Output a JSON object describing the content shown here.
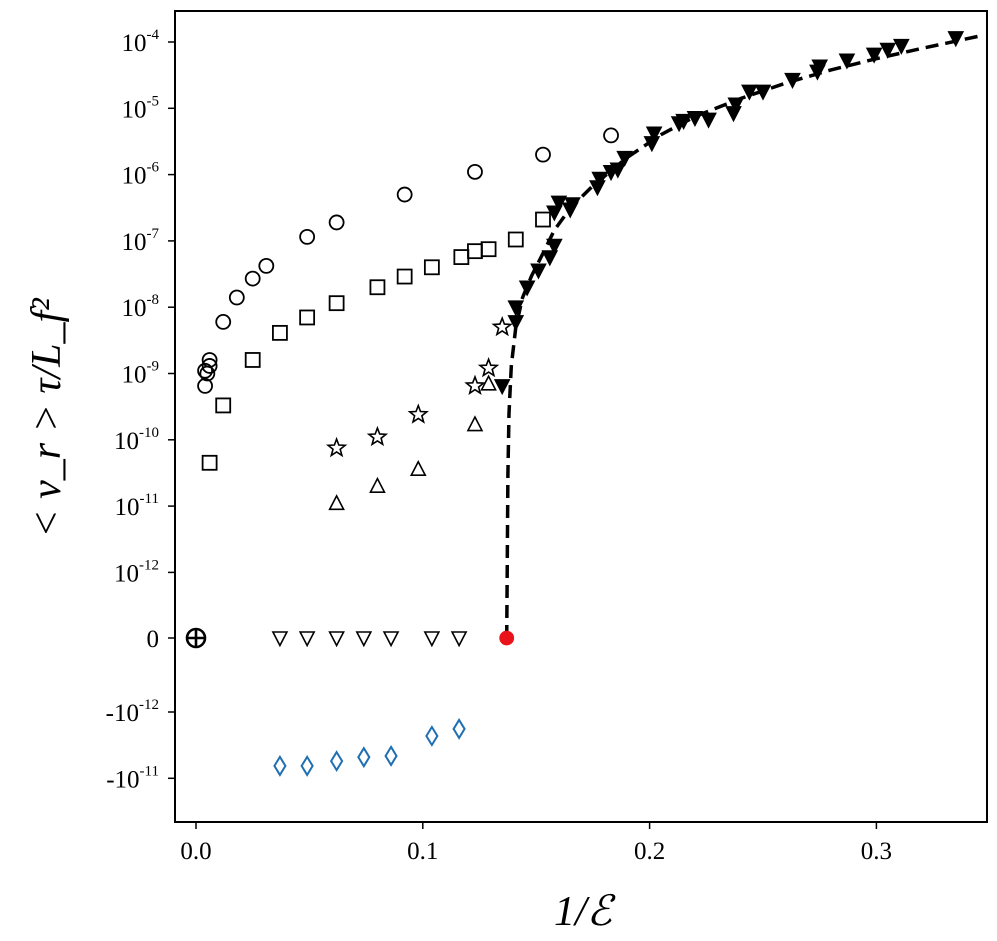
{
  "chart_data": {
    "type": "scatter",
    "title": "",
    "xlabel": "1/ℰ",
    "ylabel": "< ν_r > τ/L_f²",
    "xlim": [
      -0.01,
      0.35
    ],
    "x_ticks": [
      {
        "value": 0.0,
        "label": "0.0"
      },
      {
        "value": 0.1,
        "label": "0.1"
      },
      {
        "value": 0.2,
        "label": "0.2"
      },
      {
        "value": 0.3,
        "label": "0.3"
      }
    ],
    "y_scale": "symlog",
    "y_ticks": [
      {
        "base": "10",
        "exp": "-4"
      },
      {
        "base": "10",
        "exp": "-5"
      },
      {
        "base": "10",
        "exp": "-6"
      },
      {
        "base": "10",
        "exp": "-7"
      },
      {
        "base": "10",
        "exp": "-8"
      },
      {
        "base": "10",
        "exp": "-9"
      },
      {
        "base": "10",
        "exp": "-10"
      },
      {
        "base": "10",
        "exp": "-11"
      },
      {
        "base": "10",
        "exp": "-12"
      },
      {
        "base": "0",
        "exp": ""
      },
      {
        "base": "-10",
        "exp": "-12"
      },
      {
        "base": "-10",
        "exp": "-11"
      }
    ],
    "series": [
      {
        "name": "circles",
        "marker": "circle",
        "filled": false,
        "color": "#000000",
        "points": [
          [
            0.004,
            6.5e-10
          ],
          [
            0.004,
            1.1e-09
          ],
          [
            0.005,
            1e-09
          ],
          [
            0.006,
            1.3e-09
          ],
          [
            0.006,
            1.6e-09
          ],
          [
            0.012,
            6e-09
          ],
          [
            0.018,
            1.4e-08
          ],
          [
            0.025,
            2.7e-08
          ],
          [
            0.031,
            4.2e-08
          ],
          [
            0.049,
            1.15e-07
          ],
          [
            0.062,
            1.9e-07
          ],
          [
            0.092,
            5e-07
          ],
          [
            0.123,
            1.1e-06
          ],
          [
            0.153,
            2e-06
          ],
          [
            0.183,
            3.9e-06
          ]
        ]
      },
      {
        "name": "squares",
        "marker": "square",
        "filled": false,
        "color": "#000000",
        "points": [
          [
            0.006,
            4.5e-11
          ],
          [
            0.012,
            3.3e-10
          ],
          [
            0.025,
            1.6e-09
          ],
          [
            0.037,
            4.1e-09
          ],
          [
            0.049,
            7e-09
          ],
          [
            0.062,
            1.15e-08
          ],
          [
            0.08,
            2e-08
          ],
          [
            0.092,
            2.9e-08
          ],
          [
            0.104,
            4e-08
          ],
          [
            0.117,
            5.7e-08
          ],
          [
            0.123,
            7e-08
          ],
          [
            0.129,
            7.5e-08
          ],
          [
            0.141,
            1.05e-07
          ],
          [
            0.153,
            2.1e-07
          ]
        ]
      },
      {
        "name": "stars",
        "marker": "star",
        "filled": false,
        "color": "#000000",
        "points": [
          [
            0.062,
            7.5e-11
          ],
          [
            0.08,
            1.1e-10
          ],
          [
            0.098,
            2.4e-10
          ],
          [
            0.123,
            6.5e-10
          ],
          [
            0.129,
            1.2e-09
          ],
          [
            0.135,
            5e-09
          ]
        ]
      },
      {
        "name": "triangles-up",
        "marker": "triangle-up",
        "filled": false,
        "color": "#000000",
        "points": [
          [
            0.062,
            1.1e-11
          ],
          [
            0.08,
            2e-11
          ],
          [
            0.098,
            3.6e-11
          ],
          [
            0.123,
            1.7e-10
          ],
          [
            0.129,
            7e-10
          ]
        ]
      },
      {
        "name": "triangles-down-open",
        "marker": "triangle-down",
        "filled": false,
        "color": "#000000",
        "points": [
          [
            0.037,
            0
          ],
          [
            0.049,
            0
          ],
          [
            0.062,
            0
          ],
          [
            0.074,
            0
          ],
          [
            0.086,
            0
          ],
          [
            0.104,
            0
          ],
          [
            0.116,
            0
          ]
        ]
      },
      {
        "name": "triangles-down-filled",
        "marker": "triangle-down",
        "filled": true,
        "color": "#000000",
        "points": [
          [
            0.135,
            6.5e-10
          ],
          [
            0.141,
            6e-09
          ],
          [
            0.141,
            1e-08
          ],
          [
            0.146,
            2e-08
          ],
          [
            0.151,
            3.6e-08
          ],
          [
            0.156,
            5.7e-08
          ],
          [
            0.158,
            8.5e-08
          ],
          [
            0.158,
            2.7e-07
          ],
          [
            0.16,
            3.8e-07
          ],
          [
            0.165,
            3e-07
          ],
          [
            0.166,
            3.6e-07
          ],
          [
            0.177,
            6.5e-07
          ],
          [
            0.178,
            8.7e-07
          ],
          [
            0.183,
            1.1e-06
          ],
          [
            0.186,
            1.2e-06
          ],
          [
            0.189,
            1.8e-06
          ],
          [
            0.201,
            3e-06
          ],
          [
            0.202,
            4.2e-06
          ],
          [
            0.213,
            6e-06
          ],
          [
            0.215,
            6.5e-06
          ],
          [
            0.22,
            7.2e-06
          ],
          [
            0.226,
            6.8e-06
          ],
          [
            0.237,
            8.5e-06
          ],
          [
            0.238,
            1.15e-05
          ],
          [
            0.244,
            1.8e-05
          ],
          [
            0.25,
            1.8e-05
          ],
          [
            0.263,
            2.7e-05
          ],
          [
            0.274,
            3.6e-05
          ],
          [
            0.275,
            4.3e-05
          ],
          [
            0.287,
            5.3e-05
          ],
          [
            0.299,
            6.5e-05
          ],
          [
            0.305,
            7.7e-05
          ],
          [
            0.311,
            8.8e-05
          ],
          [
            0.335,
            0.000115
          ]
        ]
      },
      {
        "name": "diamonds",
        "marker": "diamond",
        "filled": false,
        "color": "#1f6fb2",
        "points": [
          [
            0.037,
            -6.5e-12
          ],
          [
            0.049,
            -6.5e-12
          ],
          [
            0.062,
            -5.5e-12
          ],
          [
            0.074,
            -4.8e-12
          ],
          [
            0.086,
            -4.6e-12
          ],
          [
            0.104,
            -2.3e-12
          ],
          [
            0.116,
            -1.8e-12
          ]
        ]
      },
      {
        "name": "circled-plus",
        "marker": "circled-plus",
        "filled": false,
        "color": "#000000",
        "points": [
          [
            0.0,
            0
          ]
        ]
      },
      {
        "name": "critical-point",
        "marker": "circle",
        "filled": true,
        "color": "#e8141a",
        "points": [
          [
            0.137,
            0
          ]
        ]
      }
    ],
    "fit_curve": {
      "style": "dashed",
      "color": "#000000",
      "points": [
        [
          0.137,
          0
        ],
        [
          0.1372,
          1e-12
        ],
        [
          0.1375,
          3e-11
        ],
        [
          0.138,
          2.5e-10
        ],
        [
          0.139,
          1.3e-09
        ],
        [
          0.141,
          5e-09
        ],
        [
          0.144,
          1.4e-08
        ],
        [
          0.148,
          3e-08
        ],
        [
          0.153,
          6.5e-08
        ],
        [
          0.158,
          1.45e-07
        ],
        [
          0.165,
          3.1e-07
        ],
        [
          0.175,
          6.8e-07
        ],
        [
          0.19,
          1.8e-06
        ],
        [
          0.205,
          4e-06
        ],
        [
          0.22,
          7.5e-06
        ],
        [
          0.24,
          1.4e-05
        ],
        [
          0.26,
          2.4e-05
        ],
        [
          0.28,
          3.8e-05
        ],
        [
          0.3,
          5.6e-05
        ],
        [
          0.32,
          8e-05
        ],
        [
          0.345,
          0.000122
        ]
      ]
    }
  }
}
